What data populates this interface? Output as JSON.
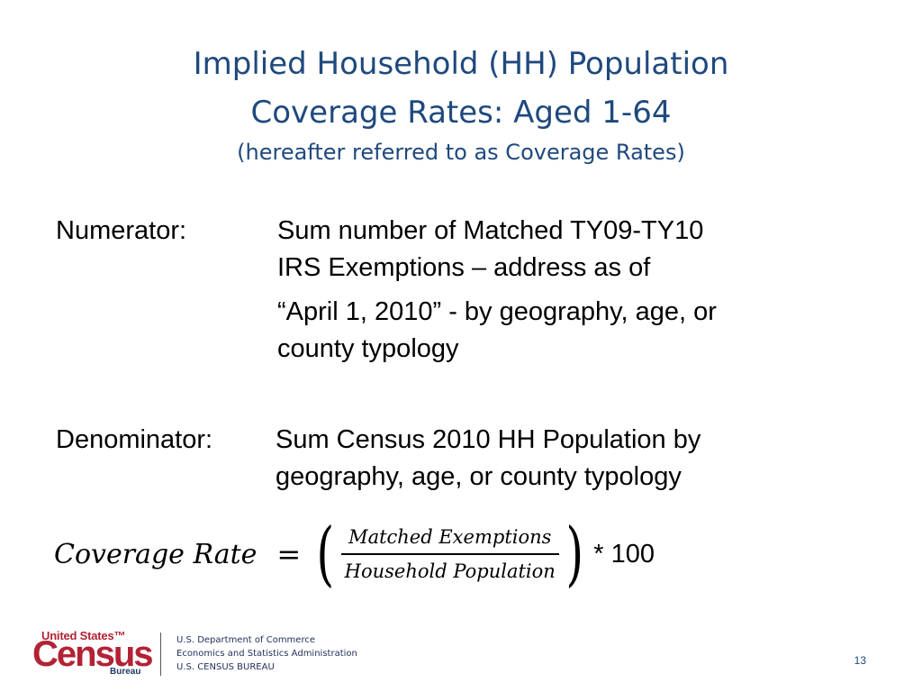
{
  "title": {
    "line1": "Implied Household (HH) Population",
    "line2": "Coverage Rates:  Aged 1-64",
    "subtitle": "(hereafter referred to as Coverage Rates)"
  },
  "numerator": {
    "label": "Numerator:",
    "lines": [
      "Sum number of Matched TY09-TY10",
      "IRS Exemptions – address as of",
      "“April 1, 2010” - by geography, age, or",
      "county typology"
    ]
  },
  "denominator": {
    "label": "Denominator:",
    "lines": [
      "Sum Census 2010 HH Population by",
      "geography, age, or county typology"
    ]
  },
  "formula": {
    "lhs": "Coverage Rate",
    "equals": "=",
    "left_paren": "(",
    "numerator": "Matched Exemptions",
    "denominator": "Household Population",
    "right_paren": ")",
    "multiplier": "* 100"
  },
  "footer": {
    "logo": {
      "top": "United States™",
      "main": "Census",
      "bottom": "Bureau"
    },
    "org_lines": [
      "U.S. Department of Commerce",
      "Economics and Statistics Administration",
      "U.S. CENSUS BUREAU"
    ],
    "page_number": "13"
  },
  "colors": {
    "title": "#1f497d",
    "logo_red": "#b22234",
    "logo_blue": "#1f3864"
  }
}
